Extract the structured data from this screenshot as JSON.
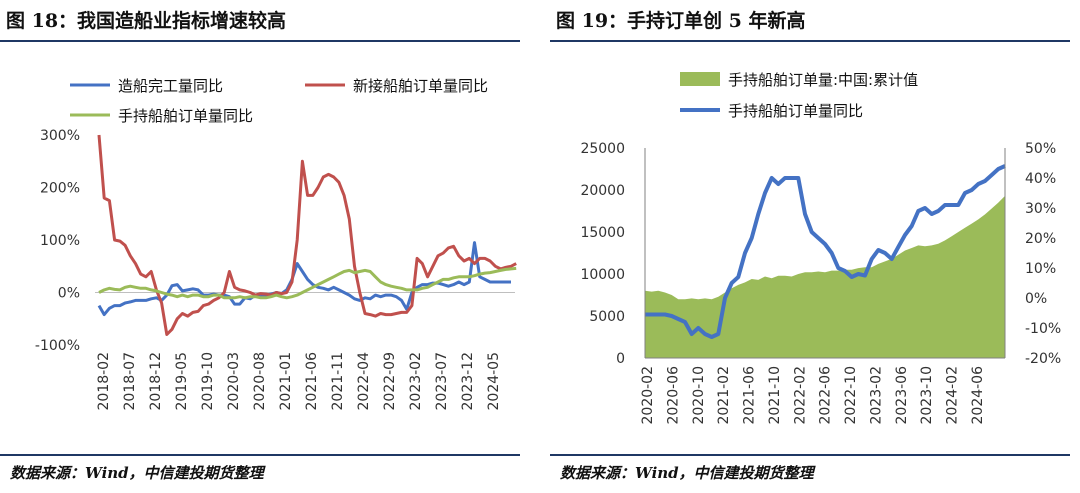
{
  "left": {
    "title": "图 18：我国造船业指标增速较高",
    "source": "数据来源：Wind，中信建投期货整理",
    "chart_data": {
      "type": "line",
      "y_ticks": [
        "300%",
        "200%",
        "100%",
        "0%",
        "-100%"
      ],
      "ylim": [
        -100,
        300
      ],
      "x_ticks": [
        "2018-02",
        "2018-07",
        "2018-12",
        "2019-05",
        "2019-10",
        "2020-03",
        "2020-08",
        "2021-01",
        "2021-06",
        "2021-11",
        "2022-04",
        "2022-09",
        "2023-02",
        "2023-07",
        "2023-12",
        "2024-05"
      ],
      "series": [
        {
          "name": "造船完工量同比",
          "color": "#4472c4",
          "values": [
            -25,
            -42,
            -30,
            -25,
            -25,
            -20,
            -18,
            -15,
            -15,
            -15,
            -12,
            -10,
            -15,
            -5,
            13,
            15,
            3,
            5,
            7,
            5,
            -5,
            -5,
            -3,
            -5,
            -5,
            -8,
            -22,
            -22,
            -10,
            -12,
            -5,
            -8,
            -5,
            -3,
            0,
            -2,
            5,
            25,
            55,
            40,
            25,
            15,
            10,
            8,
            5,
            10,
            5,
            0,
            -5,
            -12,
            -15,
            -10,
            -12,
            -5,
            -8,
            -5,
            -5,
            -8,
            -15,
            -32,
            0,
            10,
            15,
            15,
            18,
            18,
            15,
            12,
            15,
            20,
            15,
            20,
            95,
            30,
            25,
            20,
            20,
            20,
            20,
            20
          ]
        },
        {
          "name": "新接船舶订单量同比",
          "color": "#c0504d",
          "values": [
            300,
            180,
            175,
            100,
            98,
            90,
            70,
            55,
            35,
            30,
            40,
            5,
            -20,
            -80,
            -70,
            -50,
            -40,
            -45,
            -38,
            -36,
            -25,
            -22,
            -15,
            -10,
            0,
            40,
            10,
            5,
            3,
            0,
            -5,
            -2,
            -3,
            -5,
            0,
            -2,
            0,
            20,
            100,
            250,
            185,
            185,
            200,
            220,
            225,
            220,
            210,
            185,
            140,
            50,
            0,
            -40,
            -42,
            -45,
            -40,
            -42,
            -42,
            -40,
            -38,
            -38,
            -25,
            65,
            55,
            30,
            50,
            70,
            75,
            85,
            88,
            70,
            60,
            65,
            55,
            65,
            65,
            60,
            50,
            45,
            48,
            50,
            55
          ]
        },
        {
          "name": "手持船舶订单量同比",
          "color": "#9bbb59",
          "values": [
            0,
            5,
            8,
            6,
            5,
            10,
            12,
            10,
            8,
            8,
            5,
            3,
            0,
            -3,
            -5,
            -8,
            -5,
            -8,
            -5,
            -5,
            -8,
            -8,
            -5,
            -5,
            -10,
            -10,
            -10,
            -8,
            -10,
            -8,
            -8,
            -10,
            -10,
            -8,
            -5,
            -8,
            -10,
            -8,
            -5,
            0,
            5,
            10,
            15,
            20,
            25,
            30,
            35,
            40,
            42,
            38,
            40,
            42,
            40,
            30,
            20,
            15,
            12,
            10,
            8,
            5,
            5,
            5,
            8,
            10,
            15,
            20,
            25,
            25,
            28,
            30,
            30,
            30,
            32,
            35,
            37,
            38,
            40,
            42,
            44,
            45,
            46
          ]
        }
      ]
    }
  },
  "right": {
    "title": "图 19：手持订单创 5 年新高",
    "source": "数据来源：Wind，中信建投期货整理",
    "chart_data": {
      "type": "area",
      "y_ticks_left": [
        "25000",
        "20000",
        "15000",
        "10000",
        "5000",
        "0"
      ],
      "ylim_left": [
        0,
        25000
      ],
      "y_ticks_right": [
        "50%",
        "40%",
        "30%",
        "20%",
        "10%",
        "0%",
        "-10%",
        "-20%"
      ],
      "ylim_right": [
        -20,
        50
      ],
      "x_ticks": [
        "2020-02",
        "2020-06",
        "2020-10",
        "2021-02",
        "2021-06",
        "2021-10",
        "2022-02",
        "2022-06",
        "2022-10",
        "2023-02",
        "2023-06",
        "2023-10",
        "2024-02",
        "2024-06"
      ],
      "series": [
        {
          "name": "手持船舶订单量:中国:累计值",
          "color": "#9bbb59",
          "axis": "left",
          "values": [
            8000,
            7900,
            8000,
            7800,
            7500,
            7000,
            7000,
            7100,
            7000,
            7100,
            7000,
            7300,
            7800,
            8300,
            8700,
            9000,
            9400,
            9300,
            9700,
            9500,
            9800,
            9800,
            9700,
            10000,
            10200,
            10200,
            10300,
            10200,
            10400,
            10400,
            10500,
            10500,
            10700,
            10800,
            10800,
            11200,
            11500,
            11800,
            12300,
            12800,
            13100,
            13400,
            13300,
            13400,
            13600,
            14000,
            14500,
            15000,
            15500,
            16000,
            16500,
            17100,
            17800,
            18500,
            19300
          ]
        },
        {
          "name": "手持船舶订单量同比",
          "color": "#4472c4",
          "axis": "right",
          "values": [
            -5.5,
            -5.5,
            -5.5,
            -5.5,
            -6,
            -7,
            -8,
            -12,
            -10,
            -12,
            -13,
            -12,
            0,
            5,
            7,
            15,
            20,
            28,
            35,
            40,
            38,
            40,
            40,
            40,
            28,
            22,
            20,
            18,
            15,
            10,
            9,
            7,
            8,
            7.5,
            13,
            16,
            15,
            13,
            17,
            21,
            24,
            29,
            30,
            28,
            29,
            31,
            31,
            31,
            35,
            36,
            38,
            39,
            41,
            43,
            44
          ]
        }
      ]
    }
  }
}
